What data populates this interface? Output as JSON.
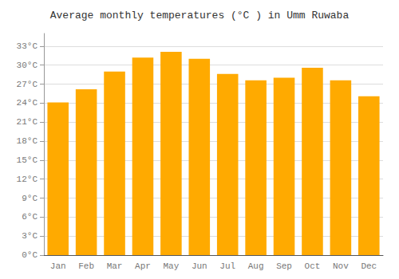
{
  "chart_data": {
    "type": "bar",
    "title": "Average monthly temperatures (°C ) in Umm Ruwaba",
    "categories": [
      "Jan",
      "Feb",
      "Mar",
      "Apr",
      "May",
      "Jun",
      "Jul",
      "Aug",
      "Sep",
      "Oct",
      "Nov",
      "Dec"
    ],
    "values": [
      24.1,
      26.2,
      29.0,
      31.2,
      32.1,
      31.0,
      28.6,
      27.6,
      28.0,
      29.6,
      27.6,
      25.1
    ],
    "color": "#FFAA00",
    "ylim": [
      0,
      35
    ],
    "yticks": [
      {
        "value": 0,
        "label": "0°C"
      },
      {
        "value": 3,
        "label": "3°C"
      },
      {
        "value": 6,
        "label": "6°C"
      },
      {
        "value": 9,
        "label": "9°C"
      },
      {
        "value": 12,
        "label": "12°C"
      },
      {
        "value": 15,
        "label": "15°C"
      },
      {
        "value": 18,
        "label": "18°C"
      },
      {
        "value": 21,
        "label": "21°C"
      },
      {
        "value": 24,
        "label": "24°C"
      },
      {
        "value": 27,
        "label": "27°C"
      },
      {
        "value": 30,
        "label": "30°C"
      },
      {
        "value": 33,
        "label": "33°C"
      }
    ],
    "grid": true
  }
}
